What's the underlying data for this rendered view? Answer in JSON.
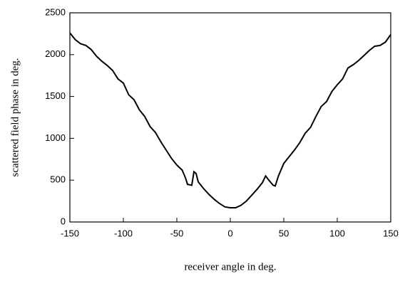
{
  "chart_data": {
    "type": "line",
    "xlabel": "receiver angle in deg.",
    "ylabel": "scattered field phase in deg.",
    "x": [
      -150,
      -145,
      -140,
      -135,
      -130,
      -125,
      -120,
      -115,
      -110,
      -105,
      -100,
      -95,
      -90,
      -85,
      -80,
      -75,
      -70,
      -65,
      -60,
      -55,
      -50,
      -45,
      -42,
      -40,
      -36,
      -34,
      -32,
      -30,
      -25,
      -20,
      -15,
      -10,
      -5,
      0,
      5,
      10,
      15,
      20,
      25,
      30,
      33,
      36,
      40,
      42,
      45,
      50,
      55,
      60,
      65,
      70,
      75,
      80,
      85,
      90,
      95,
      100,
      105,
      110,
      115,
      120,
      125,
      130,
      135,
      140,
      145,
      150
    ],
    "values": [
      2260,
      2180,
      2130,
      2110,
      2060,
      1980,
      1920,
      1870,
      1810,
      1710,
      1660,
      1520,
      1460,
      1340,
      1260,
      1140,
      1070,
      960,
      860,
      760,
      680,
      620,
      530,
      450,
      440,
      600,
      580,
      480,
      400,
      330,
      270,
      220,
      180,
      170,
      170,
      200,
      250,
      320,
      390,
      470,
      550,
      500,
      440,
      430,
      550,
      700,
      780,
      860,
      950,
      1060,
      1130,
      1260,
      1380,
      1440,
      1560,
      1640,
      1710,
      1840,
      1880,
      1930,
      1990,
      2050,
      2100,
      2110,
      2150,
      2240
    ],
    "color": "#000000",
    "xlim": [
      -150,
      150
    ],
    "xticks": [
      -150,
      -100,
      -50,
      0,
      50,
      100,
      150
    ],
    "ylim": [
      0,
      2500
    ],
    "yticks": [
      0,
      500,
      1000,
      1500,
      2000,
      2500
    ]
  }
}
